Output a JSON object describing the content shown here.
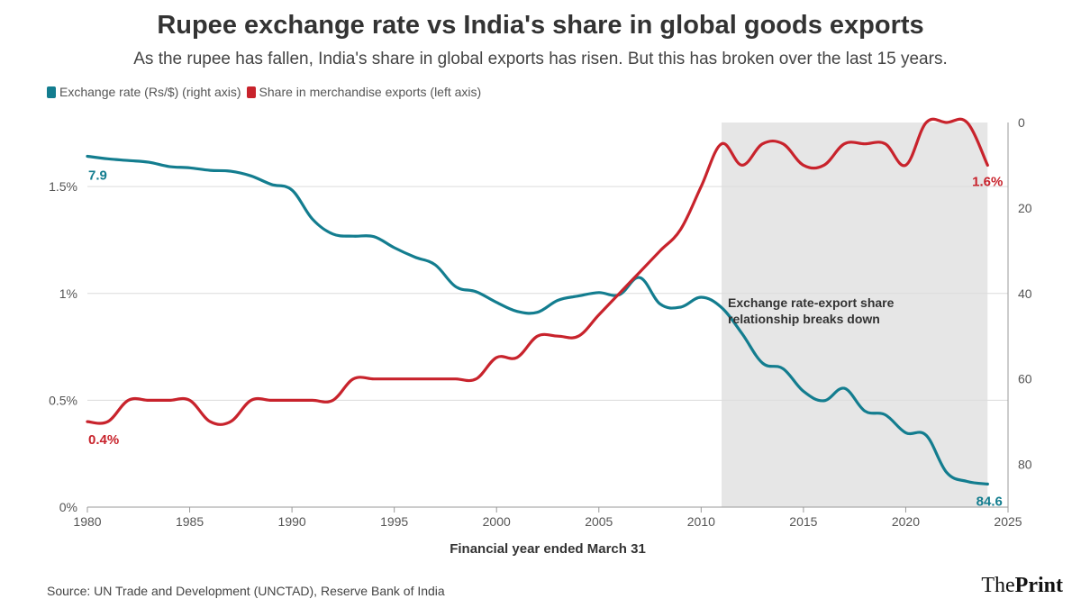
{
  "chart_data": {
    "type": "line",
    "title": "Rupee exchange rate vs India's share in global goods exports",
    "subtitle": "As the rupee has fallen, India's share in global exports has risen. But this has broken over the last 15 years.",
    "xlabel": "Financial year ended March 31",
    "xlim": [
      1980,
      2025
    ],
    "x_ticks": [
      "1980",
      "1985",
      "1990",
      "1995",
      "2000",
      "2005",
      "2010",
      "2015",
      "2020",
      "2025"
    ],
    "left_axis": {
      "ylim": [
        0,
        1.8
      ],
      "ticks": [
        0,
        0.5,
        1,
        1.5
      ],
      "tick_labels": [
        "0%",
        "0.5%",
        "1%",
        "1.5%"
      ]
    },
    "right_axis": {
      "ylim": [
        0,
        90
      ],
      "inverted": true,
      "ticks": [
        0,
        20,
        40,
        60,
        80
      ],
      "tick_labels": [
        "0",
        "20",
        "40",
        "60",
        "80"
      ]
    },
    "grid": "horizontal",
    "legend_position": "top-left",
    "series": [
      {
        "name": "Exchange rate (Rs/$) (right axis)",
        "axis": "right",
        "color": "#137d8f",
        "x": [
          1980,
          1981,
          1982,
          1983,
          1984,
          1985,
          1986,
          1987,
          1988,
          1989,
          1990,
          1991,
          1992,
          1993,
          1994,
          1995,
          1996,
          1997,
          1998,
          1999,
          2000,
          2001,
          2002,
          2003,
          2004,
          2005,
          2006,
          2007,
          2008,
          2009,
          2010,
          2011,
          2012,
          2013,
          2014,
          2015,
          2016,
          2017,
          2018,
          2019,
          2020,
          2021,
          2022,
          2023,
          2024
        ],
        "values": [
          7.9,
          8.5,
          8.9,
          9.3,
          10.3,
          10.6,
          11.2,
          11.4,
          12.5,
          14.5,
          15.8,
          22.6,
          26.1,
          26.6,
          26.7,
          29.3,
          31.5,
          33.3,
          38.4,
          39.6,
          42.1,
          44.2,
          44.4,
          41.6,
          40.6,
          39.8,
          40.3,
          36.3,
          42.5,
          43.2,
          40.9,
          43.3,
          49.4,
          56.3,
          57.6,
          62.9,
          65.1,
          62.2,
          67.5,
          68.4,
          72.6,
          73.2,
          81.9,
          84.0,
          84.6
        ]
      },
      {
        "name": "Share in merchandise exports (left axis)",
        "axis": "left",
        "color": "#c8232c",
        "x": [
          1980,
          1981,
          1982,
          1983,
          1984,
          1985,
          1986,
          1987,
          1988,
          1989,
          1990,
          1991,
          1992,
          1993,
          1994,
          1995,
          1996,
          1997,
          1998,
          1999,
          2000,
          2001,
          2002,
          2003,
          2004,
          2005,
          2006,
          2007,
          2008,
          2009,
          2010,
          2011,
          2012,
          2013,
          2014,
          2015,
          2016,
          2017,
          2018,
          2019,
          2020,
          2021,
          2022,
          2023,
          2024
        ],
        "values": [
          0.4,
          0.4,
          0.5,
          0.5,
          0.5,
          0.5,
          0.4,
          0.4,
          0.5,
          0.5,
          0.5,
          0.5,
          0.5,
          0.6,
          0.6,
          0.6,
          0.6,
          0.6,
          0.6,
          0.6,
          0.7,
          0.7,
          0.8,
          0.8,
          0.8,
          0.9,
          1.0,
          1.1,
          1.2,
          1.3,
          1.5,
          1.7,
          1.6,
          1.7,
          1.7,
          1.6,
          1.6,
          1.7,
          1.7,
          1.7,
          1.6,
          1.8,
          1.8,
          1.8,
          1.6
        ]
      }
    ],
    "shaded_region": {
      "x_start": 2011,
      "x_end": 2024
    },
    "annotation": {
      "line1": "Exchange rate-export share",
      "line2": "relationship breaks down"
    },
    "data_labels": {
      "exchange_start": "7.9",
      "exchange_end": "84.6",
      "share_start": "0.4%",
      "share_end": "1.6%"
    }
  },
  "legend": {
    "exchange_label": "Exchange rate (Rs/$) (right axis)",
    "share_label": "Share in merchandise exports (left axis)",
    "exchange_color": "#137d8f",
    "share_color": "#c8232c"
  },
  "footer": {
    "source": "Source: UN Trade and Development (UNCTAD), Reserve Bank of India",
    "brand_the": "The",
    "brand_print": "Print"
  }
}
